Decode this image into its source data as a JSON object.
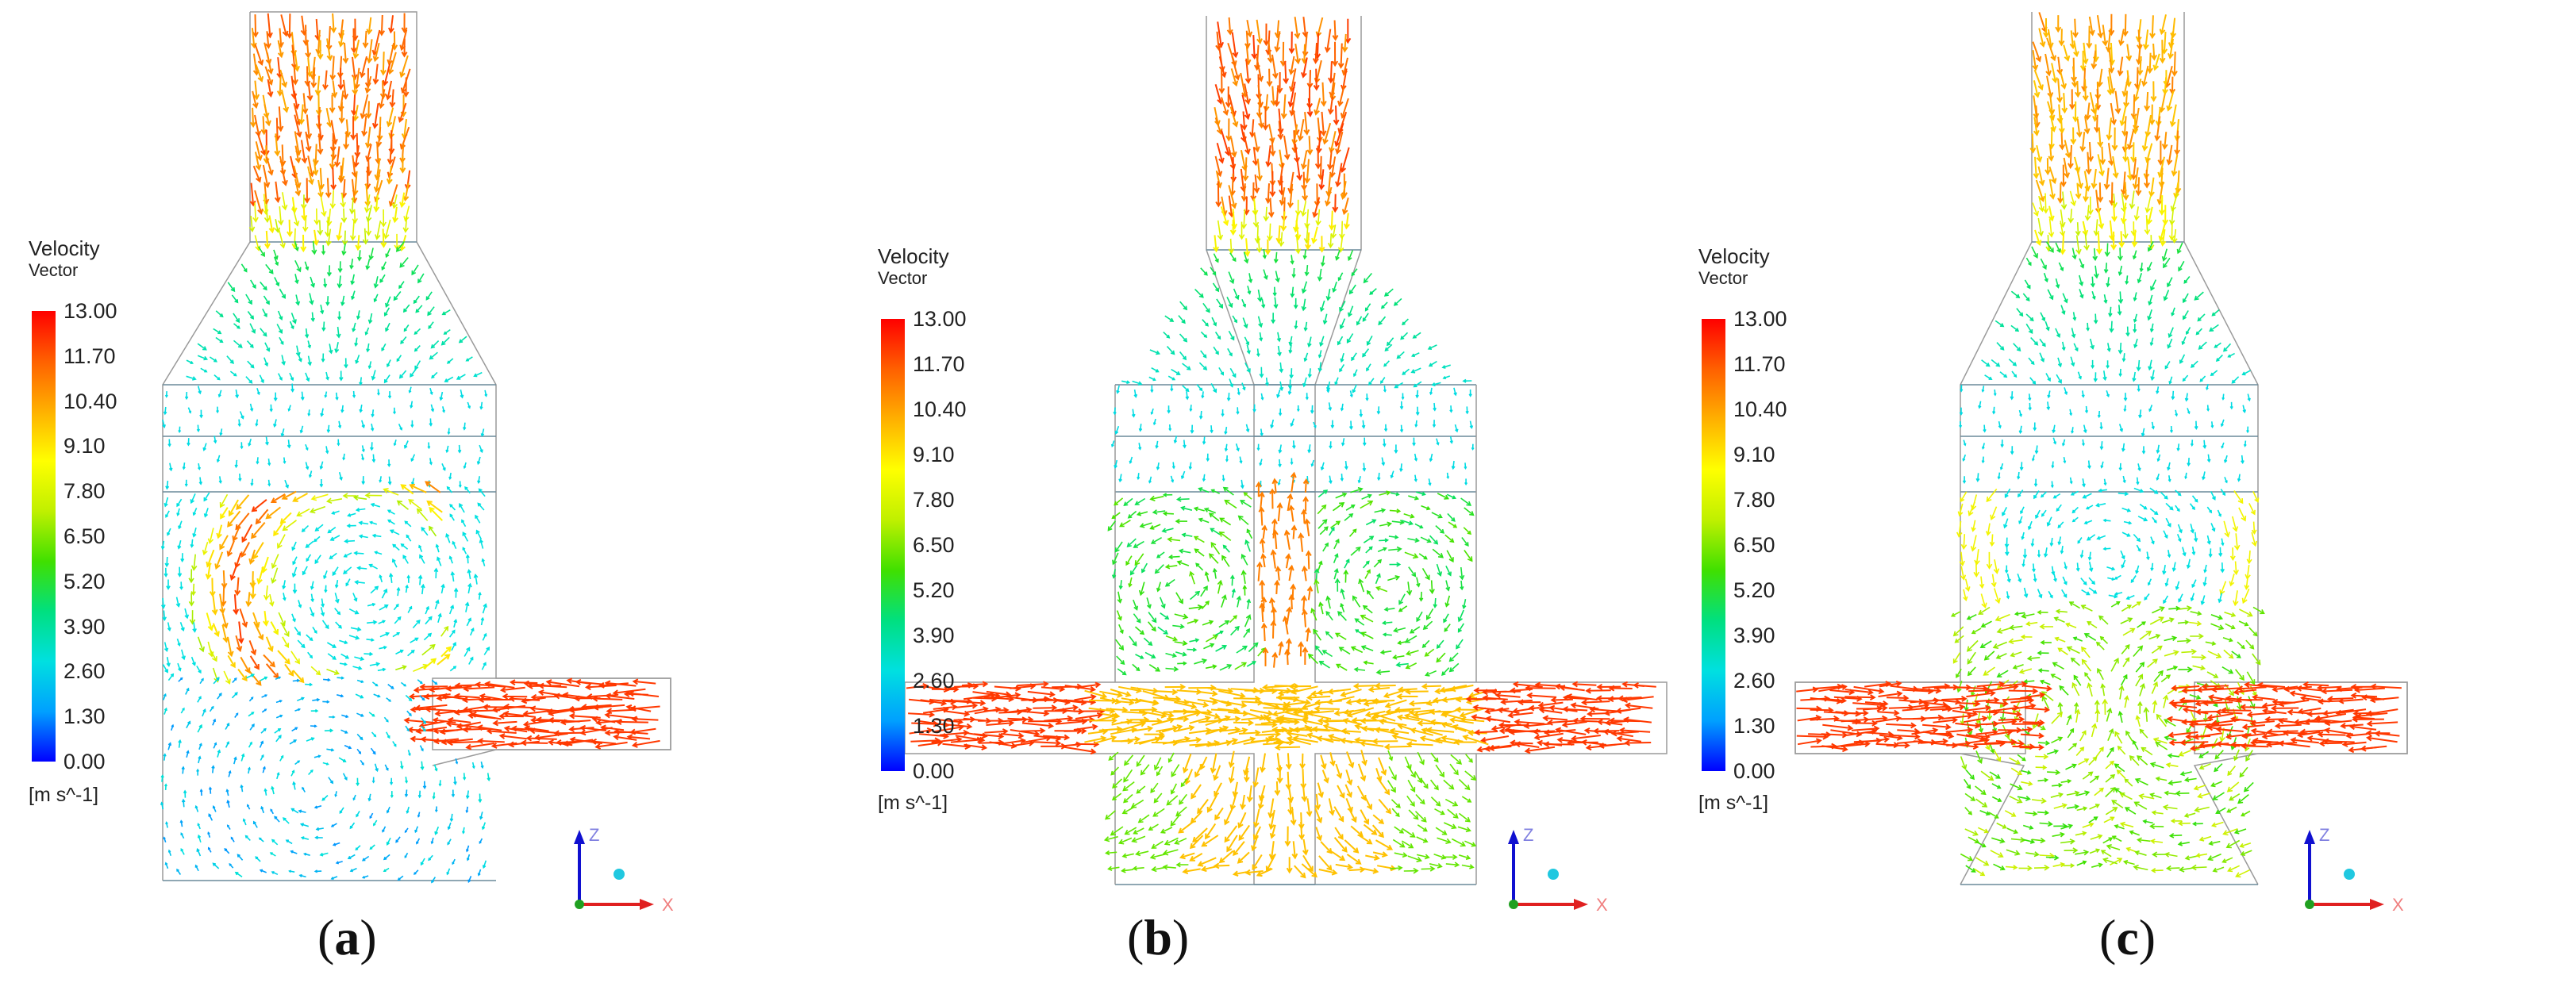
{
  "legend": {
    "title": "Velocity",
    "subtitle": "Vector",
    "ticks": [
      "13.00",
      "11.70",
      "10.40",
      "9.10",
      "7.80",
      "6.50",
      "5.20",
      "3.90",
      "2.60",
      "1.30",
      "0.00"
    ],
    "units": "[m s^-1]",
    "colors": [
      "#0000ff",
      "#00a0ff",
      "#00e0e0",
      "#00e080",
      "#40e000",
      "#c0f000",
      "#ffff00",
      "#ffb000",
      "#ff6000",
      "#ff0000"
    ]
  },
  "axes": {
    "z_label": "Z",
    "x_label": "X"
  },
  "panels": [
    {
      "caption_open": "(",
      "caption_letter": "a",
      "caption_close": ")",
      "flow": "single-side-inlet-swirl"
    },
    {
      "caption_open": "(",
      "caption_letter": "b",
      "caption_close": ")",
      "flow": "opposed-inlets-center-jet"
    },
    {
      "caption_open": "(",
      "caption_letter": "c",
      "caption_close": ")",
      "flow": "opposed-inlets-twin-vortex"
    }
  ]
}
